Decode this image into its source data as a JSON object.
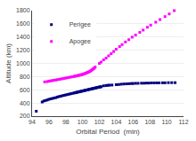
{
  "chart_data": {
    "type": "scatter",
    "xlabel": "Orbital Period  (min)",
    "ylabel": "Altitude (km)",
    "xlim": [
      94,
      112
    ],
    "ylim": [
      200,
      1800
    ],
    "xticks": [
      94,
      96,
      98,
      100,
      102,
      104,
      106,
      108,
      110,
      112
    ],
    "yticks": [
      200,
      400,
      600,
      800,
      1000,
      1200,
      1400,
      1600,
      1800
    ],
    "grid": "y",
    "legend": "upper left",
    "marker": "square",
    "series": [
      {
        "name": "Perigee",
        "color": "#000080",
        "x": [
          94.5,
          95.2,
          95.4,
          95.6,
          95.8,
          96.0,
          96.2,
          96.4,
          96.6,
          96.8,
          97.0,
          97.2,
          97.4,
          97.6,
          97.8,
          98.0,
          98.2,
          98.4,
          98.6,
          98.8,
          99.0,
          99.1,
          99.2,
          99.3,
          99.4,
          99.5,
          99.6,
          99.7,
          99.8,
          99.9,
          100.0,
          100.1,
          100.2,
          100.3,
          100.4,
          100.5,
          100.6,
          100.7,
          100.8,
          100.9,
          101.0,
          101.1,
          101.2,
          101.3,
          101.4,
          101.5,
          101.6,
          101.7,
          101.8,
          101.9,
          102.0,
          102.1,
          102.2,
          102.5,
          102.8,
          103.0,
          103.2,
          103.5,
          104.0,
          104.3,
          104.6,
          104.9,
          105.2,
          105.5,
          105.8,
          106.0,
          106.3,
          106.6,
          107.0,
          107.3,
          107.6,
          107.9,
          108.2,
          108.5,
          108.8,
          109.1,
          109.5,
          109.8,
          110.2,
          110.6,
          111.0
        ],
        "values": [
          275,
          415,
          430,
          438,
          445,
          455,
          462,
          468,
          475,
          480,
          490,
          497,
          503,
          510,
          516,
          522,
          528,
          534,
          540,
          546,
          552,
          555,
          558,
          561,
          564,
          567,
          570,
          573,
          576,
          579,
          582,
          585,
          588,
          591,
          594,
          597,
          600,
          603,
          606,
          609,
          612,
          615,
          618,
          621,
          624,
          627,
          630,
          633,
          636,
          639,
          642,
          644,
          646,
          660,
          665,
          668,
          670,
          672,
          678,
          680,
          685,
          688,
          690,
          692,
          695,
          695,
          698,
          698,
          700,
          700,
          702,
          702,
          704,
          704,
          705,
          705,
          706,
          706,
          708,
          708,
          708
        ]
      },
      {
        "name": "Apogee",
        "color": "#FF00FF",
        "x": [
          95.5,
          95.8,
          96.0,
          96.2,
          96.4,
          96.6,
          96.8,
          97.0,
          97.2,
          97.4,
          97.6,
          97.8,
          98.0,
          98.2,
          98.4,
          98.6,
          98.8,
          99.0,
          99.1,
          99.2,
          99.3,
          99.4,
          99.5,
          99.6,
          99.7,
          99.8,
          99.9,
          100.0,
          100.1,
          100.2,
          100.3,
          100.4,
          100.5,
          100.6,
          100.7,
          100.8,
          100.9,
          101.0,
          101.1,
          101.2,
          101.3,
          101.4,
          101.5,
          102.0,
          102.2,
          102.5,
          102.8,
          103.1,
          103.4,
          103.7,
          104.0,
          104.4,
          104.7,
          105.1,
          105.5,
          105.9,
          106.3,
          106.8,
          107.2,
          107.7,
          108.1,
          108.7,
          109.2,
          109.8,
          110.3,
          110.9
        ],
        "values": [
          720,
          724,
          730,
          735,
          740,
          744,
          748,
          754,
          758,
          763,
          768,
          773,
          778,
          783,
          788,
          793,
          798,
          803,
          806,
          809,
          812,
          815,
          818,
          821,
          824,
          827,
          830,
          833,
          838,
          843,
          848,
          853,
          858,
          863,
          868,
          875,
          882,
          890,
          900,
          910,
          920,
          930,
          945,
          1000,
          1020,
          1055,
          1080,
          1115,
          1148,
          1180,
          1215,
          1255,
          1285,
          1325,
          1360,
          1398,
          1430,
          1470,
          1505,
          1548,
          1580,
          1625,
          1665,
          1710,
          1750,
          1800
        ]
      }
    ]
  }
}
